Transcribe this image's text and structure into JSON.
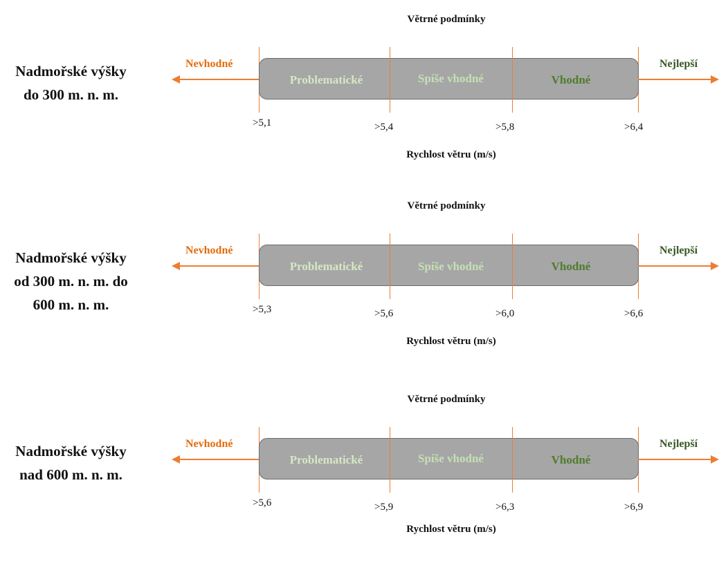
{
  "colors": {
    "bar_fill": "#a6a6a6",
    "line": "#ed7d31",
    "nevhodne": "#e46c0a",
    "problematicke": "#d6e8c4",
    "spise_vhodne": "#c5e0b4",
    "vhodne": "#4f7c2c",
    "nejlepsi": "#385723"
  },
  "panels": [
    {
      "altitude_lines": [
        "Nadmořské výšky",
        "do 300 m. n. m."
      ],
      "heading": "Větrné podmínky",
      "left_label": "Nevhodné",
      "right_label": "Nejlepší",
      "segments": [
        "Problematické",
        "Spíše vhodné",
        "Vhodné"
      ],
      "ticks": [
        ">5,1",
        ">5,4",
        ">5,8",
        ">6,4"
      ],
      "axis_title": "Rychlost větru (m/s)"
    },
    {
      "altitude_lines": [
        "Nadmořské výšky",
        "od 300 m. n. m. do",
        "600 m. n. m."
      ],
      "heading": "Větrné podmínky",
      "left_label": "Nevhodné",
      "right_label": "Nejlepší",
      "segments": [
        "Problematické",
        "Spíše vhodné",
        "Vhodné"
      ],
      "ticks": [
        ">5,3",
        ">5,6",
        ">6,0",
        ">6,6"
      ],
      "axis_title": "Rychlost větru (m/s)"
    },
    {
      "altitude_lines": [
        "Nadmořské výšky",
        "nad 600 m. n. m."
      ],
      "heading": "Větrné podmínky",
      "left_label": "Nevhodné",
      "right_label": "Nejlepší",
      "segments": [
        "Problematické",
        "Spíše vhodné",
        "Vhodné"
      ],
      "ticks": [
        ">5,6",
        ">5,9",
        ">6,3",
        ">6,9"
      ],
      "axis_title": "Rychlost větru (m/s)"
    }
  ]
}
